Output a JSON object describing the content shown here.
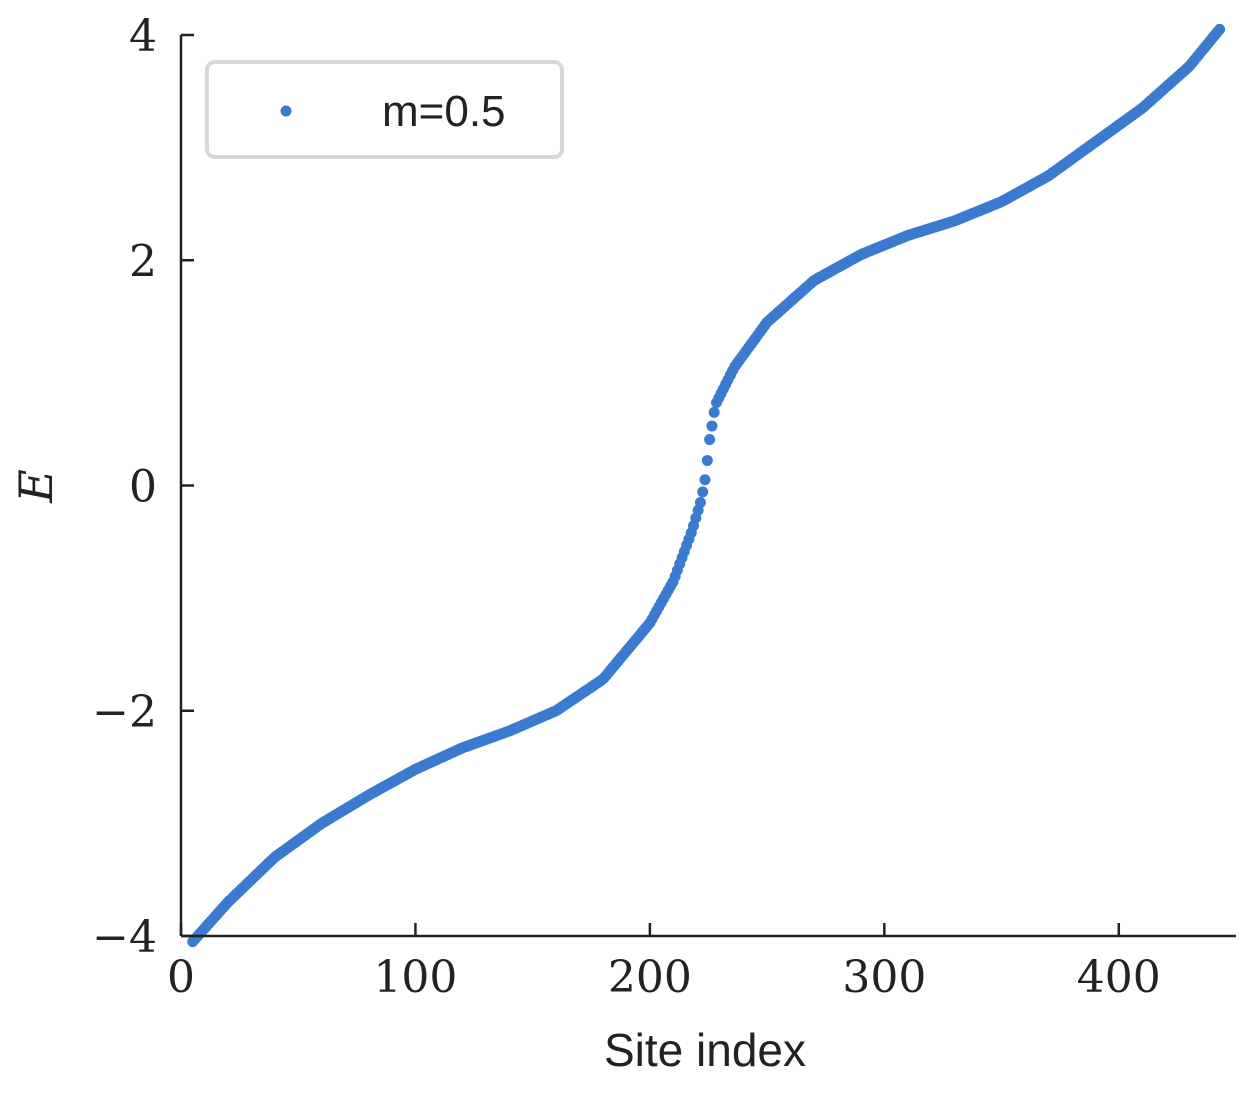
{
  "chart_data": {
    "type": "scatter",
    "xlabel": "Site index",
    "ylabel": "E",
    "xlim": [
      0,
      450
    ],
    "ylim": [
      -4,
      4
    ],
    "x_ticks": [
      0,
      100,
      200,
      300,
      400
    ],
    "x_tick_labels": [
      "0",
      "100",
      "200",
      "300",
      "400"
    ],
    "y_ticks": [
      -4,
      -2,
      0,
      2,
      4
    ],
    "y_tick_labels": [
      "−4",
      "−2",
      "0",
      "2",
      "4"
    ],
    "grid": false,
    "legend": {
      "position": "top-left",
      "entries": [
        "m=0.5"
      ]
    },
    "series": [
      {
        "name": "m=0.5",
        "color": "#3a7bcf",
        "n_points": 448,
        "x": [
          5,
          20,
          40,
          60,
          80,
          100,
          120,
          140,
          160,
          180,
          200,
          210,
          218,
          222,
          223,
          224,
          225,
          228,
          236,
          250,
          270,
          290,
          310,
          330,
          350,
          370,
          390,
          410,
          430,
          443
        ],
        "y": [
          -4.05,
          -3.7,
          -3.3,
          -3.0,
          -2.75,
          -2.52,
          -2.33,
          -2.18,
          -2.0,
          -1.72,
          -1.22,
          -0.85,
          -0.4,
          -0.12,
          0.0,
          0.1,
          0.35,
          0.72,
          1.05,
          1.45,
          1.82,
          2.05,
          2.22,
          2.35,
          2.52,
          2.75,
          3.05,
          3.35,
          3.72,
          4.05
        ]
      }
    ]
  }
}
